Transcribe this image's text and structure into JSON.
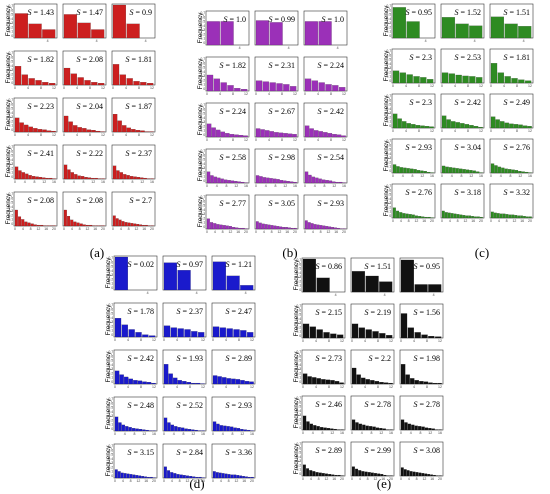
{
  "figure": {
    "panel_ylabel": "Frequency",
    "row_ticks": [
      [
        "4"
      ],
      [
        "0",
        "4",
        "8",
        "12"
      ],
      [
        "0",
        "4",
        "8",
        "12"
      ],
      [
        "0",
        "4",
        "8",
        "12",
        "16"
      ],
      [
        "0",
        "4",
        "8",
        "12",
        "16",
        "20"
      ]
    ],
    "ytick_labels": [
      "0.7",
      "0.6",
      "0.5",
      "0.4",
      "0.3",
      "0.2",
      "0.1",
      "0"
    ]
  },
  "chart_data": [
    {
      "type": "bar",
      "subfigure": "(a)",
      "color": "#cc1f1f",
      "ylim": [
        0,
        0.7
      ],
      "panels": [
        {
          "S": "1.43",
          "values": [
            0.52,
            0.3,
            0.18
          ]
        },
        {
          "S": "1.47",
          "values": [
            0.5,
            0.32,
            0.18
          ]
        },
        {
          "S": "0.9",
          "values": [
            0.7,
            0.3,
            0.0
          ]
        },
        {
          "S": "1.82",
          "values": [
            0.4,
            0.22,
            0.14,
            0.1,
            0.06,
            0.04
          ]
        },
        {
          "S": "2.08",
          "values": [
            0.36,
            0.24,
            0.16,
            0.1,
            0.06,
            0.04
          ]
        },
        {
          "S": "1.81",
          "values": [
            0.44,
            0.22,
            0.14,
            0.08,
            0.06,
            0.04
          ]
        },
        {
          "S": "2.23",
          "values": [
            0.3,
            0.2,
            0.15,
            0.11,
            0.08,
            0.06,
            0.05,
            0.03,
            0.02
          ]
        },
        {
          "S": "2.04",
          "values": [
            0.34,
            0.22,
            0.14,
            0.1,
            0.08,
            0.05,
            0.04,
            0.02,
            0.01
          ]
        },
        {
          "S": "1.87",
          "values": [
            0.38,
            0.24,
            0.14,
            0.09,
            0.06,
            0.04,
            0.03,
            0.01,
            0.01
          ]
        },
        {
          "S": "2.41",
          "values": [
            0.26,
            0.18,
            0.14,
            0.11,
            0.08,
            0.06,
            0.05,
            0.04,
            0.03,
            0.02,
            0.02,
            0.01
          ]
        },
        {
          "S": "2.22",
          "values": [
            0.3,
            0.2,
            0.14,
            0.1,
            0.07,
            0.06,
            0.04,
            0.03,
            0.02,
            0.02,
            0.01,
            0.01
          ]
        },
        {
          "S": "2.37",
          "values": [
            0.28,
            0.18,
            0.14,
            0.1,
            0.08,
            0.06,
            0.05,
            0.04,
            0.03,
            0.02,
            0.01,
            0.01
          ]
        },
        {
          "S": "2.08",
          "values": [
            0.34,
            0.2,
            0.14,
            0.09,
            0.07,
            0.05,
            0.03,
            0.02,
            0.02,
            0.01,
            0.01,
            0.01,
            0.01
          ]
        },
        {
          "S": "2.08",
          "values": [
            0.34,
            0.21,
            0.13,
            0.09,
            0.07,
            0.05,
            0.03,
            0.02,
            0.02,
            0.01,
            0.01,
            0.01,
            0.01
          ]
        },
        {
          "S": "2.7",
          "values": [
            0.22,
            0.16,
            0.13,
            0.1,
            0.08,
            0.07,
            0.06,
            0.05,
            0.04,
            0.03,
            0.02,
            0.02,
            0.01,
            0.01
          ]
        }
      ]
    },
    {
      "type": "bar",
      "subfigure": "(b)",
      "color": "#9b30b8",
      "ylim": [
        0,
        0.7
      ],
      "panels": [
        {
          "S": "1.0",
          "values": [
            0.5,
            0.5,
            0.0
          ]
        },
        {
          "S": "0.99",
          "values": [
            0.52,
            0.48,
            0.0
          ]
        },
        {
          "S": "1.0",
          "values": [
            0.5,
            0.5,
            0.0
          ]
        },
        {
          "S": "1.82",
          "values": [
            0.34,
            0.26,
            0.18,
            0.12,
            0.06,
            0.04
          ]
        },
        {
          "S": "2.31",
          "values": [
            0.22,
            0.2,
            0.18,
            0.16,
            0.14,
            0.1
          ]
        },
        {
          "S": "2.24",
          "values": [
            0.26,
            0.22,
            0.18,
            0.14,
            0.12,
            0.08
          ]
        },
        {
          "S": "2.24",
          "values": [
            0.28,
            0.2,
            0.15,
            0.11,
            0.08,
            0.06,
            0.05,
            0.04,
            0.03
          ]
        },
        {
          "S": "2.67",
          "values": [
            0.18,
            0.16,
            0.14,
            0.12,
            0.1,
            0.09,
            0.08,
            0.07,
            0.06
          ]
        },
        {
          "S": "2.42",
          "values": [
            0.24,
            0.18,
            0.14,
            0.12,
            0.1,
            0.08,
            0.06,
            0.05,
            0.03
          ]
        },
        {
          "S": "2.58",
          "values": [
            0.24,
            0.16,
            0.13,
            0.11,
            0.09,
            0.07,
            0.06,
            0.05,
            0.04,
            0.03,
            0.02,
            0.01
          ]
        },
        {
          "S": "2.98",
          "values": [
            0.16,
            0.14,
            0.12,
            0.11,
            0.1,
            0.09,
            0.08,
            0.06,
            0.05,
            0.04,
            0.03,
            0.02
          ]
        },
        {
          "S": "2.54",
          "values": [
            0.24,
            0.17,
            0.13,
            0.11,
            0.09,
            0.07,
            0.06,
            0.05,
            0.03,
            0.02,
            0.02,
            0.01
          ]
        },
        {
          "S": "2.77",
          "values": [
            0.22,
            0.14,
            0.12,
            0.1,
            0.09,
            0.08,
            0.07,
            0.06,
            0.04,
            0.03,
            0.02,
            0.02,
            0.01
          ]
        },
        {
          "S": "3.05",
          "values": [
            0.16,
            0.13,
            0.11,
            0.1,
            0.09,
            0.08,
            0.07,
            0.06,
            0.05,
            0.04,
            0.04,
            0.03,
            0.02,
            0.02
          ]
        },
        {
          "S": "2.93",
          "values": [
            0.18,
            0.14,
            0.12,
            0.1,
            0.09,
            0.08,
            0.07,
            0.06,
            0.05,
            0.04,
            0.03,
            0.02,
            0.01,
            0.01
          ]
        }
      ]
    },
    {
      "type": "bar",
      "subfigure": "(c)",
      "color": "#2e8b22",
      "ylim": [
        0,
        0.7
      ],
      "panels": [
        {
          "S": "0.95",
          "values": [
            0.65,
            0.35,
            0.0
          ]
        },
        {
          "S": "1.52",
          "values": [
            0.44,
            0.3,
            0.26
          ]
        },
        {
          "S": "1.51",
          "values": [
            0.45,
            0.3,
            0.25
          ]
        },
        {
          "S": "2.3",
          "values": [
            0.26,
            0.22,
            0.18,
            0.14,
            0.12,
            0.08
          ]
        },
        {
          "S": "2.53",
          "values": [
            0.22,
            0.2,
            0.17,
            0.15,
            0.14,
            0.12
          ]
        },
        {
          "S": "1.81",
          "values": [
            0.42,
            0.22,
            0.14,
            0.1,
            0.07,
            0.05
          ]
        },
        {
          "S": "2.3",
          "values": [
            0.3,
            0.2,
            0.14,
            0.1,
            0.08,
            0.06,
            0.05,
            0.04,
            0.03
          ]
        },
        {
          "S": "2.42",
          "values": [
            0.26,
            0.18,
            0.14,
            0.12,
            0.1,
            0.08,
            0.06,
            0.04,
            0.02
          ]
        },
        {
          "S": "2.49",
          "values": [
            0.24,
            0.18,
            0.14,
            0.11,
            0.09,
            0.08,
            0.07,
            0.05,
            0.04
          ]
        },
        {
          "S": "2.93",
          "values": [
            0.18,
            0.14,
            0.12,
            0.11,
            0.1,
            0.09,
            0.08,
            0.06,
            0.05,
            0.04,
            0.02,
            0.01
          ]
        },
        {
          "S": "3.04",
          "values": [
            0.15,
            0.13,
            0.12,
            0.11,
            0.1,
            0.09,
            0.08,
            0.07,
            0.06,
            0.05,
            0.03,
            0.01
          ]
        },
        {
          "S": "2.76",
          "values": [
            0.2,
            0.16,
            0.13,
            0.11,
            0.09,
            0.08,
            0.07,
            0.06,
            0.04,
            0.03,
            0.02,
            0.01
          ]
        },
        {
          "S": "2.76",
          "values": [
            0.22,
            0.15,
            0.12,
            0.1,
            0.09,
            0.08,
            0.07,
            0.05,
            0.04,
            0.03,
            0.02,
            0.02,
            0.01
          ]
        },
        {
          "S": "3.18",
          "values": [
            0.15,
            0.12,
            0.11,
            0.1,
            0.09,
            0.08,
            0.07,
            0.06,
            0.05,
            0.05,
            0.04,
            0.03,
            0.03,
            0.02
          ]
        },
        {
          "S": "3.32",
          "values": [
            0.13,
            0.11,
            0.1,
            0.09,
            0.09,
            0.08,
            0.07,
            0.07,
            0.06,
            0.05,
            0.05,
            0.04,
            0.03,
            0.03
          ]
        }
      ]
    },
    {
      "type": "bar",
      "subfigure": "(d)",
      "color": "#1a1acc",
      "ylim": [
        0,
        0.7
      ],
      "panels": [
        {
          "S": "0.02",
          "values": [
            0.7,
            0.0,
            0.0
          ]
        },
        {
          "S": "0.97",
          "values": [
            0.58,
            0.42,
            0.0
          ]
        },
        {
          "S": "1.21",
          "values": [
            0.6,
            0.3,
            0.1
          ]
        },
        {
          "S": "1.78",
          "values": [
            0.4,
            0.26,
            0.16,
            0.1,
            0.05,
            0.03
          ]
        },
        {
          "S": "2.37",
          "values": [
            0.24,
            0.2,
            0.18,
            0.16,
            0.12,
            0.1
          ]
        },
        {
          "S": "2.47",
          "values": [
            0.22,
            0.2,
            0.18,
            0.16,
            0.14,
            0.1
          ]
        },
        {
          "S": "2.42",
          "values": [
            0.28,
            0.2,
            0.15,
            0.11,
            0.08,
            0.07,
            0.05,
            0.04,
            0.02
          ]
        },
        {
          "S": "1.93",
          "values": [
            0.42,
            0.22,
            0.13,
            0.08,
            0.06,
            0.04,
            0.02,
            0.02,
            0.01
          ]
        },
        {
          "S": "2.89",
          "values": [
            0.18,
            0.16,
            0.14,
            0.12,
            0.11,
            0.1,
            0.08,
            0.06,
            0.05
          ]
        },
        {
          "S": "2.48",
          "values": [
            0.3,
            0.18,
            0.13,
            0.1,
            0.08,
            0.06,
            0.05,
            0.04,
            0.03,
            0.02,
            0.01,
            0.01
          ]
        },
        {
          "S": "2.52",
          "values": [
            0.28,
            0.18,
            0.13,
            0.1,
            0.08,
            0.07,
            0.05,
            0.04,
            0.03,
            0.02,
            0.01,
            0.01
          ]
        },
        {
          "S": "2.93",
          "values": [
            0.2,
            0.15,
            0.12,
            0.11,
            0.1,
            0.09,
            0.07,
            0.06,
            0.04,
            0.03,
            0.02,
            0.01
          ]
        },
        {
          "S": "3.15",
          "values": [
            0.18,
            0.14,
            0.11,
            0.1,
            0.09,
            0.08,
            0.07,
            0.06,
            0.05,
            0.04,
            0.03,
            0.02,
            0.02,
            0.01
          ]
        },
        {
          "S": "2.84",
          "values": [
            0.24,
            0.16,
            0.12,
            0.1,
            0.08,
            0.07,
            0.06,
            0.05,
            0.04,
            0.03,
            0.02,
            0.02,
            0.01
          ]
        },
        {
          "S": "3.36",
          "values": [
            0.14,
            0.12,
            0.11,
            0.1,
            0.09,
            0.08,
            0.07,
            0.07,
            0.06,
            0.05,
            0.04,
            0.03,
            0.02,
            0.02
          ]
        }
      ]
    },
    {
      "type": "bar",
      "subfigure": "(e)",
      "color": "#111111",
      "ylim": [
        0,
        0.7
      ],
      "panels": [
        {
          "S": "0.86",
          "values": [
            0.7,
            0.3,
            0.0
          ]
        },
        {
          "S": "1.51",
          "values": [
            0.44,
            0.34,
            0.22
          ]
        },
        {
          "S": "0.95",
          "values": [
            0.68,
            0.16,
            0.16
          ]
        },
        {
          "S": "2.15",
          "values": [
            0.3,
            0.24,
            0.18,
            0.12,
            0.09,
            0.07
          ]
        },
        {
          "S": "2.19",
          "values": [
            0.3,
            0.22,
            0.18,
            0.14,
            0.1,
            0.06
          ]
        },
        {
          "S": "1.56",
          "values": [
            0.52,
            0.22,
            0.12,
            0.07,
            0.04,
            0.03
          ]
        },
        {
          "S": "2.73",
          "values": [
            0.22,
            0.16,
            0.14,
            0.12,
            0.1,
            0.09,
            0.08,
            0.06,
            0.03
          ]
        },
        {
          "S": "2.2",
          "values": [
            0.34,
            0.2,
            0.13,
            0.1,
            0.08,
            0.06,
            0.04,
            0.03,
            0.02
          ]
        },
        {
          "S": "1.98",
          "values": [
            0.42,
            0.2,
            0.12,
            0.08,
            0.06,
            0.05,
            0.03,
            0.02,
            0.02
          ]
        },
        {
          "S": "2.46",
          "values": [
            0.3,
            0.18,
            0.13,
            0.1,
            0.08,
            0.06,
            0.05,
            0.04,
            0.03,
            0.02,
            0.01,
            0.01
          ]
        },
        {
          "S": "2.78",
          "values": [
            0.22,
            0.16,
            0.13,
            0.11,
            0.09,
            0.08,
            0.07,
            0.05,
            0.04,
            0.03,
            0.01,
            0.01
          ]
        },
        {
          "S": "2.78",
          "values": [
            0.22,
            0.16,
            0.13,
            0.11,
            0.09,
            0.08,
            0.07,
            0.05,
            0.04,
            0.03,
            0.01,
            0.01
          ]
        },
        {
          "S": "2.89",
          "values": [
            0.24,
            0.16,
            0.12,
            0.1,
            0.08,
            0.07,
            0.06,
            0.05,
            0.04,
            0.03,
            0.02,
            0.02,
            0.01
          ]
        },
        {
          "S": "2.99",
          "values": [
            0.2,
            0.15,
            0.12,
            0.1,
            0.09,
            0.08,
            0.07,
            0.06,
            0.05,
            0.04,
            0.02,
            0.01,
            0.01
          ]
        },
        {
          "S": "3.08",
          "values": [
            0.18,
            0.14,
            0.12,
            0.1,
            0.09,
            0.08,
            0.07,
            0.06,
            0.05,
            0.04,
            0.03,
            0.02,
            0.01,
            0.01
          ]
        }
      ]
    }
  ]
}
